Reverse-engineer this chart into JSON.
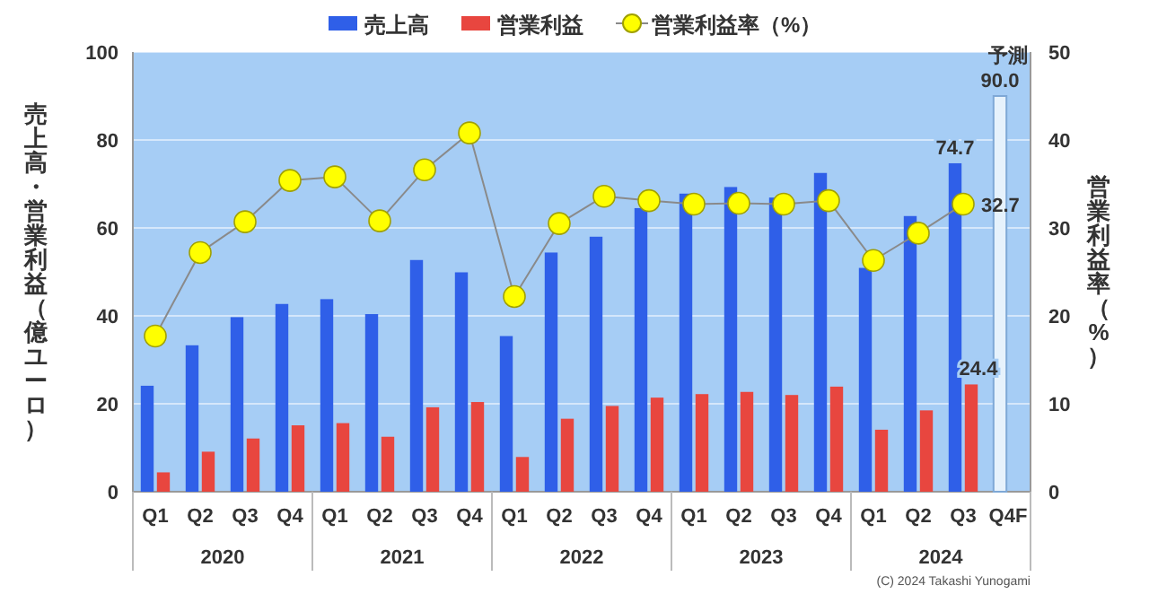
{
  "chart_data": {
    "type": "bar",
    "ylabel": "売上高・営業利益（億ユーロ）",
    "y2label": "営業利益率（%）",
    "categories": [
      "Q1",
      "Q2",
      "Q3",
      "Q4",
      "Q1",
      "Q2",
      "Q3",
      "Q4",
      "Q1",
      "Q2",
      "Q3",
      "Q4",
      "Q1",
      "Q2",
      "Q3",
      "Q4",
      "Q1",
      "Q2",
      "Q3",
      "Q4F"
    ],
    "series": [
      {
        "name": "売上高",
        "color": "#2f5fe8",
        "colors": [
          "#2f5fe8",
          "#2f5fe8",
          "#2f5fe8",
          "#2f5fe8",
          "#2f5fe8",
          "#2f5fe8",
          "#2f5fe8",
          "#2f5fe8",
          "#2f5fe8",
          "#2f5fe8",
          "#2f5fe8",
          "#2f5fe8",
          "#2f5fe8",
          "#2f5fe8",
          "#2f5fe8",
          "#2f5fe8",
          "#2f5fe8",
          "#2f5fe8",
          "#2f5fe8",
          "#e6f2fc"
        ],
        "values": [
          24.1,
          33.3,
          39.7,
          42.7,
          43.8,
          40.4,
          52.7,
          49.9,
          35.4,
          54.4,
          58.0,
          64.5,
          67.8,
          69.3,
          66.9,
          72.5,
          50.9,
          62.7,
          74.7,
          90.0
        ],
        "value_labels": [
          null,
          null,
          null,
          null,
          null,
          null,
          null,
          null,
          null,
          null,
          null,
          null,
          null,
          null,
          null,
          null,
          null,
          null,
          "74.7",
          "90.0"
        ]
      },
      {
        "name": "営業利益",
        "color": "#e8463f",
        "values": [
          4.4,
          9.1,
          12.1,
          15.1,
          15.6,
          12.5,
          19.2,
          20.4,
          7.9,
          16.6,
          19.5,
          21.4,
          22.2,
          22.7,
          22.0,
          23.9,
          14.1,
          18.5,
          24.4,
          null
        ],
        "value_labels": [
          null,
          null,
          null,
          null,
          null,
          null,
          null,
          null,
          null,
          null,
          null,
          null,
          null,
          null,
          null,
          null,
          null,
          null,
          "24.4",
          null
        ]
      },
      {
        "name": "営業利益率（%）",
        "type": "line",
        "axis": "y2",
        "color": "#ffff00",
        "values": [
          17.7,
          27.2,
          30.7,
          35.4,
          35.8,
          30.8,
          36.6,
          40.8,
          22.2,
          30.5,
          33.6,
          33.1,
          32.7,
          32.8,
          32.7,
          33.1,
          26.3,
          29.4,
          32.7,
          null
        ],
        "value_labels": [
          null,
          null,
          null,
          null,
          null,
          null,
          null,
          null,
          null,
          null,
          null,
          null,
          null,
          null,
          null,
          null,
          null,
          null,
          "32.7",
          null
        ]
      }
    ],
    "ylim": [
      0,
      100
    ],
    "yticks": [
      0,
      20,
      40,
      60,
      80,
      100
    ],
    "y2lim": [
      0,
      50
    ],
    "y2ticks": [
      0,
      10,
      20,
      30,
      40,
      50
    ],
    "grid": "y",
    "legend": "top",
    "marker": "circle",
    "annotations": [
      "2020",
      "2021",
      "2022",
      "2023",
      "2024",
      {
        "text": "予測",
        "x": "Q4F",
        "y": 90.0
      },
      "(C) 2024 Takashi Yunogami"
    ]
  }
}
